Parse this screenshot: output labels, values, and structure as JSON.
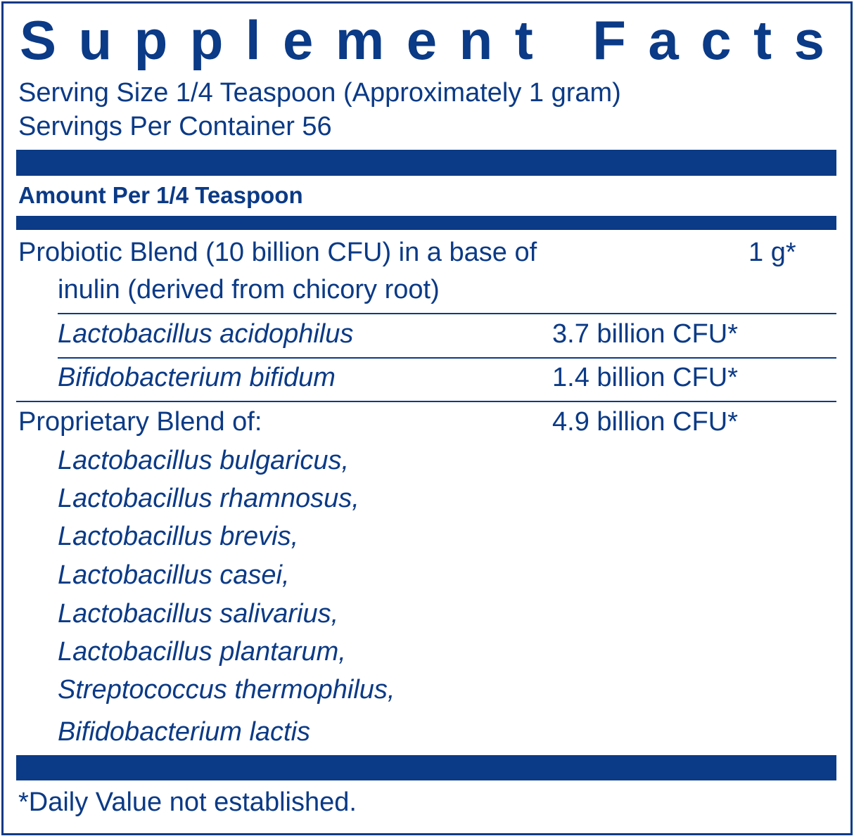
{
  "title": "Supplement Facts",
  "serving_size": "Serving Size 1/4 Teaspoon (Approximately 1 gram)",
  "servings_per_container": "Servings Per Container 56",
  "amount_per": "Amount Per 1/4 Teaspoon",
  "probiotic_blend": {
    "line1": "Probiotic Blend (10 billion CFU) in a base of",
    "line2": "inulin (derived from chicory root)",
    "amount": "1 g*"
  },
  "strains": [
    {
      "name": "Lactobacillus acidophilus",
      "amount": "3.7 billion CFU*"
    },
    {
      "name": "Bifidobacterium bifidum",
      "amount": "1.4 billion CFU*"
    }
  ],
  "proprietary_blend": {
    "label": "Proprietary Blend of:",
    "amount": "4.9 billion CFU*",
    "items": [
      "Lactobacillus bulgaricus,",
      "Lactobacillus rhamnosus,",
      "Lactobacillus brevis,",
      "Lactobacillus casei,",
      "Lactobacillus salivarius,",
      "Lactobacillus plantarum,",
      "Streptococcus thermophilus,",
      "Bifidobacterium lactis"
    ]
  },
  "footnote": "*Daily Value not established.",
  "colors": {
    "label_blue": "#0b3a86"
  }
}
